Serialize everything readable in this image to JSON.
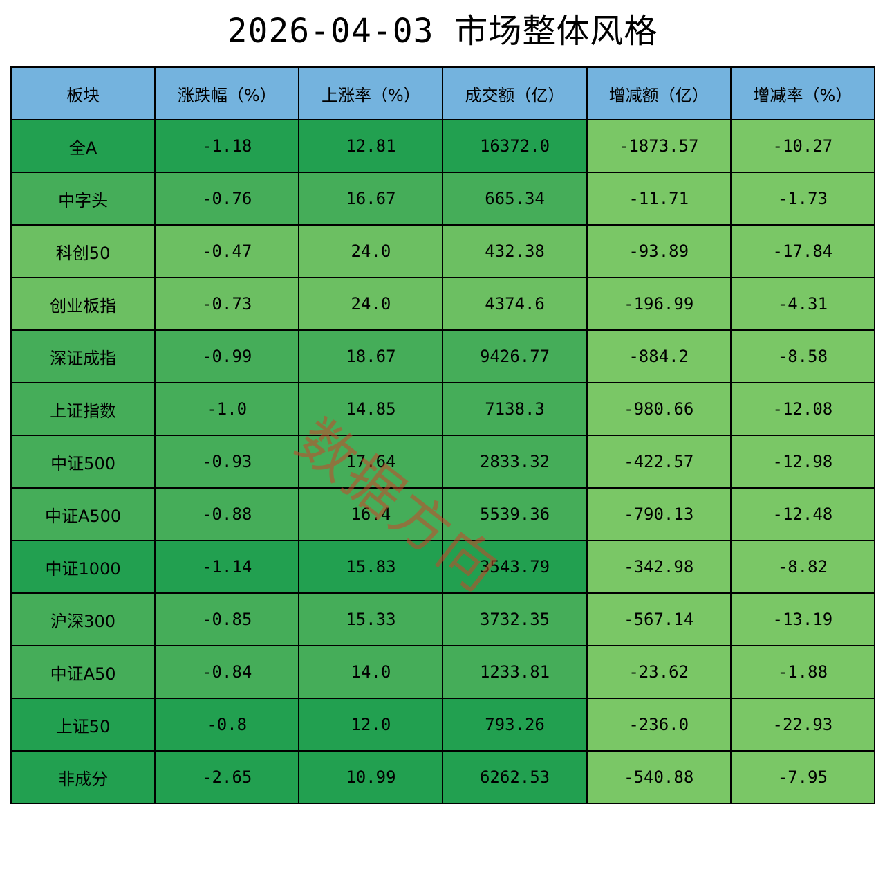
{
  "title": "2026-04-03 市场整体风格",
  "watermark": "数据方向",
  "colors": {
    "header_bg": "#74b3de",
    "dark_green": "#22a050",
    "mid_green": "#45ad59",
    "light_green": "#6cbf62",
    "lighter_green": "#7ac766",
    "border": "#000000"
  },
  "chart_data": {
    "type": "table",
    "title": "2026-04-03 市场整体风格",
    "columns": [
      "板块",
      "涨跌幅（%）",
      "上涨率（%）",
      "成交额（亿）",
      "增减额（亿）",
      "增减率（%）"
    ],
    "rows": [
      {
        "cells": [
          "全A",
          "-1.18",
          "12.81",
          "16372.0",
          "-1873.57",
          "-10.27"
        ],
        "colors": [
          "dark_green",
          "dark_green",
          "dark_green",
          "dark_green",
          "lighter_green",
          "lighter_green"
        ]
      },
      {
        "cells": [
          "中字头",
          "-0.76",
          "16.67",
          "665.34",
          "-11.71",
          "-1.73"
        ],
        "colors": [
          "mid_green",
          "mid_green",
          "mid_green",
          "mid_green",
          "lighter_green",
          "lighter_green"
        ]
      },
      {
        "cells": [
          "科创50",
          "-0.47",
          "24.0",
          "432.38",
          "-93.89",
          "-17.84"
        ],
        "colors": [
          "light_green",
          "light_green",
          "light_green",
          "light_green",
          "lighter_green",
          "lighter_green"
        ]
      },
      {
        "cells": [
          "创业板指",
          "-0.73",
          "24.0",
          "4374.6",
          "-196.99",
          "-4.31"
        ],
        "colors": [
          "light_green",
          "light_green",
          "light_green",
          "light_green",
          "lighter_green",
          "lighter_green"
        ]
      },
      {
        "cells": [
          "深证成指",
          "-0.99",
          "18.67",
          "9426.77",
          "-884.2",
          "-8.58"
        ],
        "colors": [
          "mid_green",
          "mid_green",
          "mid_green",
          "mid_green",
          "lighter_green",
          "lighter_green"
        ]
      },
      {
        "cells": [
          "上证指数",
          "-1.0",
          "14.85",
          "7138.3",
          "-980.66",
          "-12.08"
        ],
        "colors": [
          "mid_green",
          "mid_green",
          "mid_green",
          "mid_green",
          "lighter_green",
          "lighter_green"
        ]
      },
      {
        "cells": [
          "中证500",
          "-0.93",
          "17.64",
          "2833.32",
          "-422.57",
          "-12.98"
        ],
        "colors": [
          "mid_green",
          "mid_green",
          "mid_green",
          "mid_green",
          "lighter_green",
          "lighter_green"
        ]
      },
      {
        "cells": [
          "中证A500",
          "-0.88",
          "16.4",
          "5539.36",
          "-790.13",
          "-12.48"
        ],
        "colors": [
          "mid_green",
          "mid_green",
          "mid_green",
          "mid_green",
          "lighter_green",
          "lighter_green"
        ]
      },
      {
        "cells": [
          "中证1000",
          "-1.14",
          "15.83",
          "3543.79",
          "-342.98",
          "-8.82"
        ],
        "colors": [
          "dark_green",
          "dark_green",
          "dark_green",
          "dark_green",
          "lighter_green",
          "lighter_green"
        ]
      },
      {
        "cells": [
          "沪深300",
          "-0.85",
          "15.33",
          "3732.35",
          "-567.14",
          "-13.19"
        ],
        "colors": [
          "mid_green",
          "mid_green",
          "mid_green",
          "mid_green",
          "lighter_green",
          "lighter_green"
        ]
      },
      {
        "cells": [
          "中证A50",
          "-0.84",
          "14.0",
          "1233.81",
          "-23.62",
          "-1.88"
        ],
        "colors": [
          "mid_green",
          "mid_green",
          "mid_green",
          "mid_green",
          "lighter_green",
          "lighter_green"
        ]
      },
      {
        "cells": [
          "上证50",
          "-0.8",
          "12.0",
          "793.26",
          "-236.0",
          "-22.93"
        ],
        "colors": [
          "dark_green",
          "dark_green",
          "dark_green",
          "dark_green",
          "lighter_green",
          "lighter_green"
        ]
      },
      {
        "cells": [
          "非成分",
          "-2.65",
          "10.99",
          "6262.53",
          "-540.88",
          "-7.95"
        ],
        "colors": [
          "dark_green",
          "dark_green",
          "dark_green",
          "dark_green",
          "lighter_green",
          "lighter_green"
        ]
      }
    ]
  }
}
